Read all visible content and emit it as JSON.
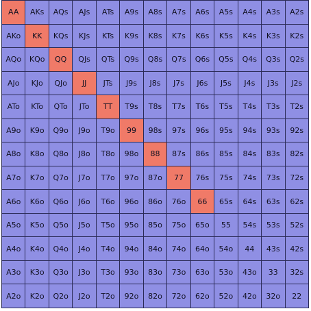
{
  "colors": {
    "cell": "#8f8fe4",
    "highlight": "#f07a68",
    "border": "#2a2a55",
    "text": "#111122"
  },
  "grid": {
    "rows": [
      [
        "AA",
        "AKs",
        "AQs",
        "AJs",
        "ATs",
        "A9s",
        "A8s",
        "A7s",
        "A6s",
        "A5s",
        "A4s",
        "A3s",
        "A2s"
      ],
      [
        "AKo",
        "KK",
        "KQs",
        "KJs",
        "KTs",
        "K9s",
        "K8s",
        "K7s",
        "K6s",
        "K5s",
        "K4s",
        "K3s",
        "K2s"
      ],
      [
        "AQo",
        "KQo",
        "QQ",
        "QJs",
        "QTs",
        "Q9s",
        "Q8s",
        "Q7s",
        "Q6s",
        "Q5s",
        "Q4s",
        "Q3s",
        "Q2s"
      ],
      [
        "AJo",
        "KJo",
        "QJo",
        "JJ",
        "JTs",
        "J9s",
        "J8s",
        "J7s",
        "J6s",
        "J5s",
        "J4s",
        "J3s",
        "J2s"
      ],
      [
        "ATo",
        "KTo",
        "QTo",
        "JTo",
        "TT",
        "T9s",
        "T8s",
        "T7s",
        "T6s",
        "T5s",
        "T4s",
        "T3s",
        "T2s"
      ],
      [
        "A9o",
        "K9o",
        "Q9o",
        "J9o",
        "T9o",
        "99",
        "98s",
        "97s",
        "96s",
        "95s",
        "94s",
        "93s",
        "92s"
      ],
      [
        "A8o",
        "K8o",
        "Q8o",
        "J8o",
        "T8o",
        "98o",
        "88",
        "87s",
        "86s",
        "85s",
        "84s",
        "83s",
        "82s"
      ],
      [
        "A7o",
        "K7o",
        "Q7o",
        "J7o",
        "T7o",
        "97o",
        "87o",
        "77",
        "76s",
        "75s",
        "74s",
        "73s",
        "72s"
      ],
      [
        "A6o",
        "K6o",
        "Q6o",
        "J6o",
        "T6o",
        "96o",
        "86o",
        "76o",
        "66",
        "65s",
        "64s",
        "63s",
        "62s"
      ],
      [
        "A5o",
        "K5o",
        "Q5o",
        "J5o",
        "T5o",
        "95o",
        "85o",
        "75o",
        "65o",
        "55",
        "54s",
        "53s",
        "52s"
      ],
      [
        "A4o",
        "K4o",
        "Q4o",
        "J4o",
        "T4o",
        "94o",
        "84o",
        "74o",
        "64o",
        "54o",
        "44",
        "43s",
        "42s"
      ],
      [
        "A3o",
        "K3o",
        "Q3o",
        "J3o",
        "T3o",
        "93o",
        "83o",
        "73o",
        "63o",
        "53o",
        "43o",
        "33",
        "32s"
      ],
      [
        "A2o",
        "K2o",
        "Q2o",
        "J2o",
        "T2o",
        "92o",
        "82o",
        "72o",
        "62o",
        "52o",
        "42o",
        "32o",
        "22"
      ]
    ],
    "highlighted": [
      "AA",
      "KK",
      "QQ",
      "JJ",
      "TT",
      "99",
      "88",
      "77",
      "66"
    ]
  }
}
